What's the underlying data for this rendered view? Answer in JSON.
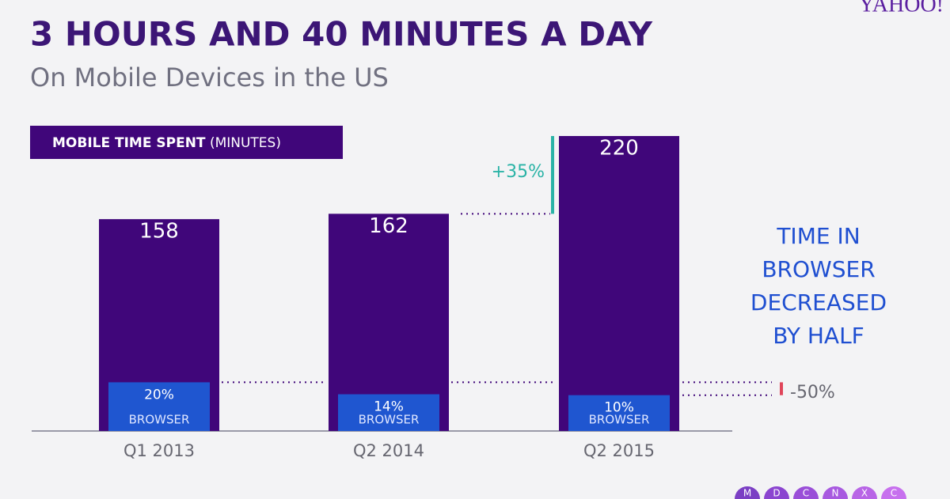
{
  "brand": "YAHOO!",
  "chart_data": {
    "type": "bar",
    "title": "3 HOURS AND 40 MINUTES A DAY",
    "subtitle": "On Mobile Devices in the US",
    "label_box": {
      "bold": "MOBILE TIME SPENT",
      "unit": "(MINUTES)"
    },
    "categories": [
      "Q1 2013",
      "Q2 2014",
      "Q2 2015"
    ],
    "values": [
      158,
      162,
      220
    ],
    "color": "#40067a",
    "series": [
      {
        "name": "BROWSER",
        "color": "#1f56d0",
        "values": [
          20,
          14,
          10
        ],
        "value_labels": [
          "20%",
          "14%",
          "10%"
        ]
      }
    ],
    "annotations": {
      "growth": "+35%",
      "drop": "-50%",
      "note": [
        "TIME IN",
        "BROWSER",
        "DECREASED",
        "BY HALF"
      ]
    }
  },
  "footer_letters": [
    "M",
    "D",
    "C",
    "N",
    "X",
    "C"
  ]
}
